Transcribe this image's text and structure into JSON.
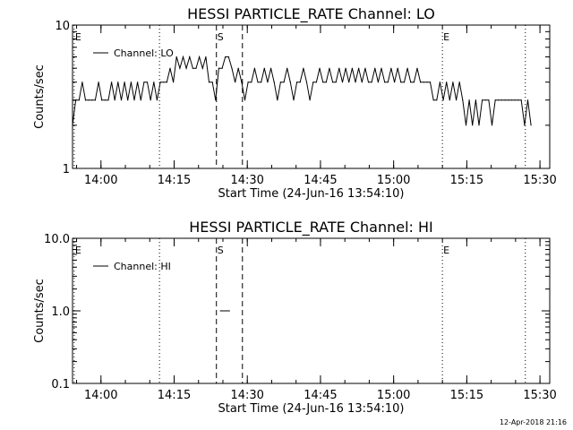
{
  "footer": {
    "timestamp": "12-Apr-2018 21:16"
  },
  "chart_data": [
    {
      "type": "line",
      "title": "HESSI PARTICLE_RATE Channel: LO",
      "xlabel": "Start Time (24-Jun-16 13:54:10)",
      "ylabel": "Counts/sec",
      "yscale": "log",
      "ylim": [
        1,
        10
      ],
      "y_ticks": [
        {
          "label": "1",
          "value": 1
        },
        {
          "label": "10",
          "value": 10
        }
      ],
      "xlim": [
        "13:54:10",
        "15:32:00"
      ],
      "x_ticks": [
        {
          "label": "14:00",
          "time": "14:00"
        },
        {
          "label": "14:15",
          "time": "14:15"
        },
        {
          "label": "14:30",
          "time": "14:30"
        },
        {
          "label": "14:45",
          "time": "14:45"
        },
        {
          "label": "15:00",
          "time": "15:00"
        },
        {
          "label": "15:15",
          "time": "15:15"
        },
        {
          "label": "15:30",
          "time": "15:30"
        }
      ],
      "markers": [
        {
          "time": "13:54:30",
          "style": "dotted",
          "label": "E"
        },
        {
          "time": "14:12:00",
          "style": "dotted",
          "label": ""
        },
        {
          "time": "14:23:40",
          "style": "dashed",
          "label": "S"
        },
        {
          "time": "14:29:00",
          "style": "dashed",
          "label": ""
        },
        {
          "time": "15:10:00",
          "style": "dotted",
          "label": "E"
        },
        {
          "time": "15:27:00",
          "style": "dotted",
          "label": ""
        }
      ],
      "legend": {
        "position": "top-left",
        "entries": [
          "Channel: LO"
        ]
      },
      "series": [
        {
          "name": "Channel: LO",
          "points": [
            [
              "13:54:10",
              2
            ],
            [
              "13:54:50",
              3
            ],
            [
              "13:55:30",
              3
            ],
            [
              "13:56:10",
              4
            ],
            [
              "13:56:50",
              3
            ],
            [
              "13:57:30",
              3
            ],
            [
              "13:58:10",
              3
            ],
            [
              "13:58:50",
              3
            ],
            [
              "13:59:30",
              4
            ],
            [
              "14:00:10",
              3
            ],
            [
              "14:00:50",
              3
            ],
            [
              "14:01:30",
              3
            ],
            [
              "14:02:10",
              4
            ],
            [
              "14:02:50",
              3
            ],
            [
              "14:03:30",
              4
            ],
            [
              "14:04:10",
              3
            ],
            [
              "14:04:50",
              4
            ],
            [
              "14:05:30",
              3
            ],
            [
              "14:06:10",
              4
            ],
            [
              "14:06:50",
              3
            ],
            [
              "14:07:30",
              4
            ],
            [
              "14:08:10",
              3
            ],
            [
              "14:08:50",
              4
            ],
            [
              "14:09:30",
              4
            ],
            [
              "14:10:10",
              3
            ],
            [
              "14:10:50",
              4
            ],
            [
              "14:11:30",
              3
            ],
            [
              "14:12:10",
              4
            ],
            [
              "14:12:50",
              4
            ],
            [
              "14:13:30",
              4
            ],
            [
              "14:14:10",
              5
            ],
            [
              "14:14:50",
              4
            ],
            [
              "14:15:30",
              6
            ],
            [
              "14:16:10",
              5
            ],
            [
              "14:16:50",
              6
            ],
            [
              "14:17:30",
              5
            ],
            [
              "14:18:10",
              6
            ],
            [
              "14:18:50",
              5
            ],
            [
              "14:19:30",
              5
            ],
            [
              "14:20:10",
              6
            ],
            [
              "14:20:50",
              5
            ],
            [
              "14:21:30",
              6
            ],
            [
              "14:22:10",
              4
            ],
            [
              "14:22:50",
              4
            ],
            [
              "14:23:30",
              3
            ],
            [
              "14:24:10",
              5
            ],
            [
              "14:24:50",
              5
            ],
            [
              "14:25:30",
              6
            ],
            [
              "14:26:10",
              6
            ],
            [
              "14:26:50",
              5
            ],
            [
              "14:27:30",
              4
            ],
            [
              "14:28:10",
              5
            ],
            [
              "14:28:50",
              4
            ],
            [
              "14:29:30",
              3
            ],
            [
              "14:30:10",
              4
            ],
            [
              "14:30:50",
              4
            ],
            [
              "14:31:30",
              5
            ],
            [
              "14:32:10",
              4
            ],
            [
              "14:32:50",
              4
            ],
            [
              "14:33:30",
              5
            ],
            [
              "14:34:10",
              4
            ],
            [
              "14:34:50",
              5
            ],
            [
              "14:35:30",
              4
            ],
            [
              "14:36:10",
              3
            ],
            [
              "14:36:50",
              4
            ],
            [
              "14:37:30",
              4
            ],
            [
              "14:38:10",
              5
            ],
            [
              "14:38:50",
              4
            ],
            [
              "14:39:30",
              3
            ],
            [
              "14:40:10",
              4
            ],
            [
              "14:40:50",
              4
            ],
            [
              "14:41:30",
              5
            ],
            [
              "14:42:10",
              4
            ],
            [
              "14:42:50",
              3
            ],
            [
              "14:43:30",
              4
            ],
            [
              "14:44:10",
              4
            ],
            [
              "14:44:50",
              5
            ],
            [
              "14:45:30",
              4
            ],
            [
              "14:46:10",
              4
            ],
            [
              "14:46:50",
              5
            ],
            [
              "14:47:30",
              4
            ],
            [
              "14:48:10",
              4
            ],
            [
              "14:48:50",
              5
            ],
            [
              "14:49:30",
              4
            ],
            [
              "14:50:10",
              5
            ],
            [
              "14:50:50",
              4
            ],
            [
              "14:51:30",
              5
            ],
            [
              "14:52:10",
              4
            ],
            [
              "14:52:50",
              5
            ],
            [
              "14:53:30",
              4
            ],
            [
              "14:54:10",
              5
            ],
            [
              "14:54:50",
              4
            ],
            [
              "14:55:30",
              4
            ],
            [
              "14:56:10",
              5
            ],
            [
              "14:56:50",
              4
            ],
            [
              "14:57:30",
              5
            ],
            [
              "14:58:10",
              4
            ],
            [
              "14:58:50",
              4
            ],
            [
              "14:59:30",
              5
            ],
            [
              "15:00:10",
              4
            ],
            [
              "15:00:50",
              5
            ],
            [
              "15:01:30",
              4
            ],
            [
              "15:02:10",
              4
            ],
            [
              "15:02:50",
              5
            ],
            [
              "15:03:30",
              4
            ],
            [
              "15:04:10",
              4
            ],
            [
              "15:04:50",
              5
            ],
            [
              "15:05:30",
              4
            ],
            [
              "15:06:10",
              4
            ],
            [
              "15:06:50",
              4
            ],
            [
              "15:07:30",
              4
            ],
            [
              "15:08:10",
              3
            ],
            [
              "15:08:50",
              3
            ],
            [
              "15:09:30",
              4
            ],
            [
              "15:10:10",
              3
            ],
            [
              "15:10:50",
              4
            ],
            [
              "15:11:30",
              3
            ],
            [
              "15:12:10",
              4
            ],
            [
              "15:12:50",
              3
            ],
            [
              "15:13:30",
              4
            ],
            [
              "15:14:10",
              3
            ],
            [
              "15:14:50",
              2
            ],
            [
              "15:15:30",
              3
            ],
            [
              "15:16:10",
              2
            ],
            [
              "15:16:50",
              3
            ],
            [
              "15:17:30",
              2
            ],
            [
              "15:18:10",
              3
            ],
            [
              "15:18:50",
              3
            ],
            [
              "15:19:30",
              3
            ],
            [
              "15:20:10",
              2
            ],
            [
              "15:20:50",
              3
            ],
            [
              "15:21:30",
              3
            ],
            [
              "15:22:10",
              3
            ],
            [
              "15:22:50",
              3
            ],
            [
              "15:23:30",
              3
            ],
            [
              "15:24:10",
              3
            ],
            [
              "15:24:50",
              3
            ],
            [
              "15:25:30",
              3
            ],
            [
              "15:26:10",
              3
            ],
            [
              "15:26:50",
              2
            ],
            [
              "15:27:30",
              3
            ],
            [
              "15:28:10",
              2
            ]
          ]
        }
      ]
    },
    {
      "type": "line",
      "title": "HESSI PARTICLE_RATE Channel: HI",
      "xlabel": "Start Time (24-Jun-16 13:54:10)",
      "ylabel": "Counts/sec",
      "yscale": "log",
      "ylim": [
        0.1,
        10.0
      ],
      "y_ticks": [
        {
          "label": "0.1",
          "value": 0.1
        },
        {
          "label": "1.0",
          "value": 1.0
        },
        {
          "label": "10.0",
          "value": 10.0
        }
      ],
      "xlim": [
        "13:54:10",
        "15:32:00"
      ],
      "x_ticks": [
        {
          "label": "14:00",
          "time": "14:00"
        },
        {
          "label": "14:15",
          "time": "14:15"
        },
        {
          "label": "14:30",
          "time": "14:30"
        },
        {
          "label": "14:45",
          "time": "14:45"
        },
        {
          "label": "15:00",
          "time": "15:00"
        },
        {
          "label": "15:15",
          "time": "15:15"
        },
        {
          "label": "15:30",
          "time": "15:30"
        }
      ],
      "markers": [
        {
          "time": "13:54:30",
          "style": "dotted",
          "label": "E"
        },
        {
          "time": "14:12:00",
          "style": "dotted",
          "label": ""
        },
        {
          "time": "14:23:40",
          "style": "dashed",
          "label": "S"
        },
        {
          "time": "14:29:00",
          "style": "dashed",
          "label": ""
        },
        {
          "time": "15:10:00",
          "style": "dotted",
          "label": "E"
        },
        {
          "time": "15:27:00",
          "style": "dotted",
          "label": ""
        }
      ],
      "legend": {
        "position": "top-left",
        "entries": [
          "Channel: HI"
        ]
      },
      "series": [
        {
          "name": "Channel: HI",
          "points": [
            [
              "14:24:30",
              1.0
            ],
            [
              "14:26:20",
              1.0
            ]
          ]
        }
      ]
    }
  ]
}
